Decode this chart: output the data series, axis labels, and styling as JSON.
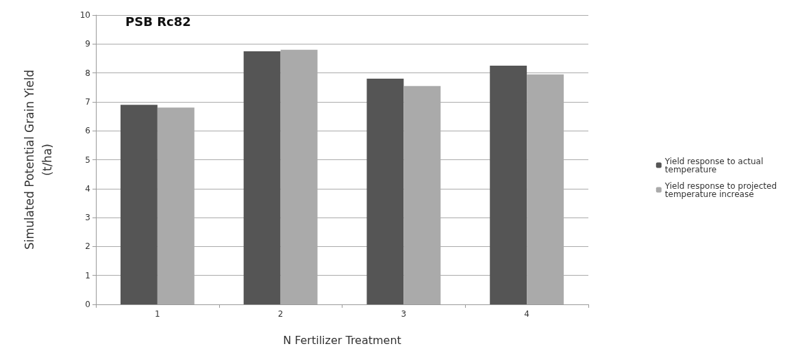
{
  "chart_data": {
    "type": "bar",
    "xlabel": "N Fertilizer Treatment",
    "ylabel": "Simulated Potential Grain Yield\n(t/ha)",
    "categories": [
      "1",
      "2",
      "3",
      "4"
    ],
    "series": [
      {
        "name": "Yield response to actual\ntemperature",
        "color": "#555555",
        "values": [
          6.9,
          8.75,
          7.8,
          8.25
        ]
      },
      {
        "name": "Yield response to projected\ntemperature increase",
        "color": "#aaaaaa",
        "values": [
          6.8,
          8.8,
          7.55,
          7.95
        ]
      }
    ],
    "ylim": [
      0,
      10
    ],
    "yticks": [
      0,
      1,
      2,
      3,
      4,
      5,
      6,
      7,
      8,
      9,
      10
    ],
    "grid": "y",
    "legend": "right",
    "annotations": [
      "PSB Rc82"
    ]
  }
}
